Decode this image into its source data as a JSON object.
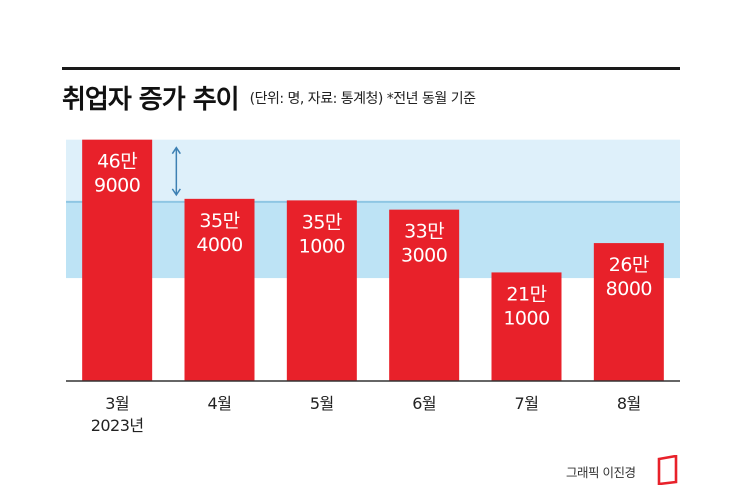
{
  "header": {
    "title": "취업자 증가 추이",
    "subtitle": "(단위: 명, 자료: 통계청) *전년 동월 기준"
  },
  "chart_data": {
    "type": "bar",
    "categories": [
      "3월\n2023년",
      "4월",
      "5월",
      "6월",
      "7월",
      "8월"
    ],
    "values": [
      469000,
      354000,
      351000,
      333000,
      211000,
      268000
    ],
    "data_labels": [
      "46만\n9000",
      "35만\n4000",
      "35만\n1000",
      "33만\n3000",
      "21만\n1000",
      "26만\n8000"
    ],
    "ylim": [
      0,
      480000
    ],
    "reference_band": [
      200000,
      350000
    ],
    "grid": false,
    "colors": {
      "bar": "#e8212a",
      "band": "#bde3f5",
      "band_light": "#def0fa",
      "band_line": "#8ec6e3",
      "arrow": "#3d80b3"
    }
  },
  "footer": {
    "credit": "그래픽 이진경"
  }
}
